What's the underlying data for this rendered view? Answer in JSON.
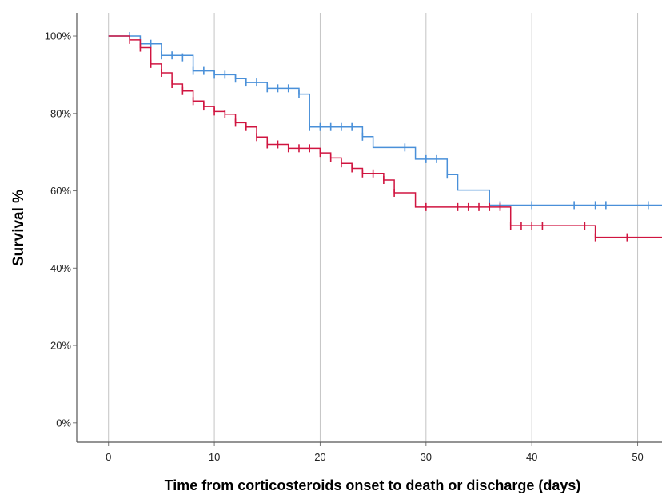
{
  "chart_data": {
    "type": "line",
    "subtype": "kaplan-meier step",
    "xlabel": "Time from corticosteroids onset to death or discharge (days)",
    "ylabel": "Survival %",
    "xlim": [
      -3,
      52.3
    ],
    "ylim": [
      -5,
      106
    ],
    "x_ticks": [
      "0",
      "10",
      "20",
      "30",
      "40",
      "50"
    ],
    "y_ticks": [
      "0%",
      "20%",
      "40%",
      "60%",
      "80%",
      "100%"
    ],
    "grid": "vertical",
    "legend": "none",
    "series": [
      {
        "color": "#4a90d9",
        "steps": [
          [
            0,
            100
          ],
          [
            3,
            98
          ],
          [
            5,
            95
          ],
          [
            8,
            91
          ],
          [
            10,
            90
          ],
          [
            12,
            89
          ],
          [
            13,
            88
          ],
          [
            15,
            86.5
          ],
          [
            18,
            85
          ],
          [
            19,
            76.5
          ],
          [
            24,
            74
          ],
          [
            25,
            71.2
          ],
          [
            29,
            68.2
          ],
          [
            32,
            64.2
          ],
          [
            33,
            60.2
          ],
          [
            36,
            56.3
          ],
          [
            52.3,
            56.3
          ]
        ],
        "censored": [
          [
            2,
            100
          ],
          [
            4,
            98
          ],
          [
            5,
            95
          ],
          [
            6,
            95
          ],
          [
            7,
            94.5
          ],
          [
            8,
            91
          ],
          [
            9,
            91
          ],
          [
            10,
            90
          ],
          [
            11,
            90
          ],
          [
            12,
            89
          ],
          [
            13,
            88
          ],
          [
            14,
            88
          ],
          [
            15,
            86.5
          ],
          [
            16,
            86.5
          ],
          [
            17,
            86.5
          ],
          [
            18,
            85
          ],
          [
            19,
            76.5
          ],
          [
            20,
            76.5
          ],
          [
            21,
            76.5
          ],
          [
            22,
            76.5
          ],
          [
            23,
            76.5
          ],
          [
            24,
            74
          ],
          [
            28,
            71.2
          ],
          [
            30,
            68.2
          ],
          [
            31,
            68.2
          ],
          [
            32,
            64.2
          ],
          [
            37,
            56.3
          ],
          [
            40,
            56.3
          ],
          [
            44,
            56.3
          ],
          [
            46,
            56.3
          ],
          [
            47,
            56.3
          ],
          [
            51,
            56.3
          ]
        ]
      },
      {
        "color": "#d01540",
        "steps": [
          [
            0,
            100
          ],
          [
            2,
            99
          ],
          [
            3,
            97
          ],
          [
            4,
            92.8
          ],
          [
            5,
            90.5
          ],
          [
            6,
            87.6
          ],
          [
            7,
            85.8
          ],
          [
            8,
            83.2
          ],
          [
            9,
            81.8
          ],
          [
            10,
            80.5
          ],
          [
            11,
            79.8
          ],
          [
            12,
            77.6
          ],
          [
            13,
            76.5
          ],
          [
            14,
            73.9
          ],
          [
            15,
            72
          ],
          [
            17,
            71
          ],
          [
            20,
            69.8
          ],
          [
            21,
            68.5
          ],
          [
            22,
            67.1
          ],
          [
            23,
            65.8
          ],
          [
            24,
            64.5
          ],
          [
            26,
            62.8
          ],
          [
            27,
            59.5
          ],
          [
            29,
            55.8
          ],
          [
            38,
            51
          ],
          [
            46,
            48
          ],
          [
            52.3,
            48
          ]
        ],
        "censored": [
          [
            2,
            99
          ],
          [
            3,
            97
          ],
          [
            4,
            92.8
          ],
          [
            5,
            90.5
          ],
          [
            6,
            87.6
          ],
          [
            7,
            85.8
          ],
          [
            8,
            83.2
          ],
          [
            9,
            81.8
          ],
          [
            10,
            80.5
          ],
          [
            11,
            79.8
          ],
          [
            12,
            77.6
          ],
          [
            13,
            76.5
          ],
          [
            14,
            73.9
          ],
          [
            15,
            72
          ],
          [
            16,
            72
          ],
          [
            17,
            71
          ],
          [
            18,
            71
          ],
          [
            19,
            71
          ],
          [
            20,
            69.8
          ],
          [
            21,
            68.5
          ],
          [
            22,
            67.1
          ],
          [
            23,
            65.8
          ],
          [
            24,
            64.5
          ],
          [
            25,
            64.5
          ],
          [
            26,
            62.8
          ],
          [
            27,
            59.5
          ],
          [
            30,
            55.8
          ],
          [
            33,
            55.8
          ],
          [
            34,
            55.8
          ],
          [
            35,
            55.8
          ],
          [
            36,
            55.8
          ],
          [
            37,
            55.8
          ],
          [
            38,
            51
          ],
          [
            39,
            51
          ],
          [
            40,
            51
          ],
          [
            41,
            51
          ],
          [
            45,
            51
          ],
          [
            46,
            48
          ],
          [
            49,
            48
          ]
        ]
      }
    ]
  }
}
